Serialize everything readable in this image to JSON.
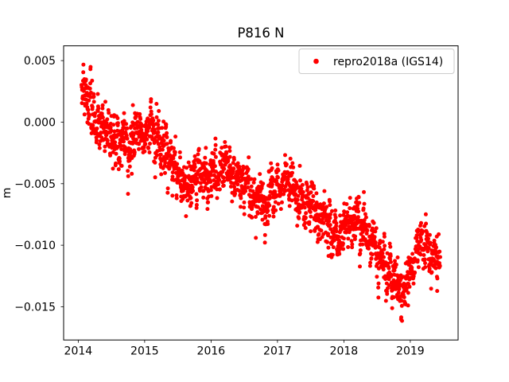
{
  "figure": {
    "background": "#ffffff"
  },
  "chart_data": {
    "type": "scatter",
    "title": "P816 N",
    "xlabel": "",
    "ylabel": "m",
    "grid": false,
    "legend": {
      "position": "upper right",
      "entries": [
        {
          "label": "repro2018a (IGS14)",
          "marker": "dot",
          "marker_color": "#ff0000"
        }
      ]
    },
    "axes": {
      "xlim": [
        2013.78,
        2019.72
      ],
      "ylim": [
        -0.0177,
        0.0062
      ],
      "xticks": [
        {
          "value": 2014,
          "label": "2014"
        },
        {
          "value": 2015,
          "label": "2015"
        },
        {
          "value": 2016,
          "label": "2016"
        },
        {
          "value": 2017,
          "label": "2017"
        },
        {
          "value": 2018,
          "label": "2018"
        },
        {
          "value": 2019,
          "label": "2019"
        }
      ],
      "yticks": [
        {
          "value": 0.005,
          "label": "0.005"
        },
        {
          "value": 0.0,
          "label": "0.000"
        },
        {
          "value": -0.005,
          "label": "−0.005"
        },
        {
          "value": -0.01,
          "label": "−0.010"
        },
        {
          "value": -0.015,
          "label": "−0.015"
        }
      ]
    },
    "series": [
      {
        "name": "repro2018a (IGS14)",
        "color": "#ff0000",
        "marker": "circle",
        "marker_radius_px": 2.5,
        "synthesis": {
          "note": "dense daily position time series read off the plot: declining trend with annual oscillation; points = interpolated mean path + AR(1) noise",
          "n_points": 1900,
          "t_start": 2014.05,
          "t_end": 2019.45,
          "noise_sd_m": 0.0011,
          "ar1_phi": 0.55,
          "seed": 20180816,
          "mean_path": [
            [
              2014.05,
              0.0028
            ],
            [
              2014.12,
              0.0022
            ],
            [
              2014.22,
              0.0006
            ],
            [
              2014.35,
              -0.0003
            ],
            [
              2014.5,
              -0.001
            ],
            [
              2014.65,
              -0.0018
            ],
            [
              2014.8,
              -0.002
            ],
            [
              2014.95,
              -0.0007
            ],
            [
              2015.05,
              -0.0006
            ],
            [
              2015.2,
              -0.0015
            ],
            [
              2015.35,
              -0.0025
            ],
            [
              2015.5,
              -0.0043
            ],
            [
              2015.65,
              -0.0052
            ],
            [
              2015.8,
              -0.0048
            ],
            [
              2015.95,
              -0.0043
            ],
            [
              2016.1,
              -0.0039
            ],
            [
              2016.25,
              -0.004
            ],
            [
              2016.4,
              -0.0046
            ],
            [
              2016.55,
              -0.0055
            ],
            [
              2016.7,
              -0.0063
            ],
            [
              2016.85,
              -0.0062
            ],
            [
              2017.0,
              -0.0048
            ],
            [
              2017.15,
              -0.005
            ],
            [
              2017.3,
              -0.0058
            ],
            [
              2017.5,
              -0.007
            ],
            [
              2017.65,
              -0.0082
            ],
            [
              2017.8,
              -0.009
            ],
            [
              2017.95,
              -0.0087
            ],
            [
              2018.1,
              -0.008
            ],
            [
              2018.2,
              -0.0077
            ],
            [
              2018.35,
              -0.009
            ],
            [
              2018.5,
              -0.0105
            ],
            [
              2018.65,
              -0.012
            ],
            [
              2018.8,
              -0.0135
            ],
            [
              2018.9,
              -0.0133
            ],
            [
              2019.0,
              -0.012
            ],
            [
              2019.1,
              -0.0103
            ],
            [
              2019.2,
              -0.01
            ],
            [
              2019.3,
              -0.0108
            ],
            [
              2019.45,
              -0.0113
            ]
          ]
        }
      }
    ]
  }
}
